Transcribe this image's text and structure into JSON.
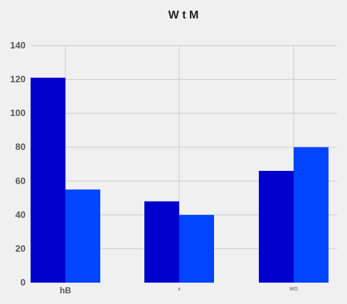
{
  "chart_data": {
    "type": "bar",
    "title": "W t M",
    "xlabel": "",
    "ylabel": "",
    "categories": [
      "hB",
      "x",
      "WG"
    ],
    "series": [
      {
        "values": [
          121,
          48,
          66
        ],
        "color": "#0000cd"
      },
      {
        "values": [
          55,
          40,
          80
        ],
        "color": "#0044ff"
      }
    ],
    "ylim": [
      0,
      140
    ],
    "yticks": [
      0,
      20,
      40,
      60,
      80,
      100,
      120,
      140
    ],
    "grid": true,
    "legend": "none"
  },
  "style": {
    "background": "#f0f0f0",
    "grid_color": "#cbcbcb"
  }
}
